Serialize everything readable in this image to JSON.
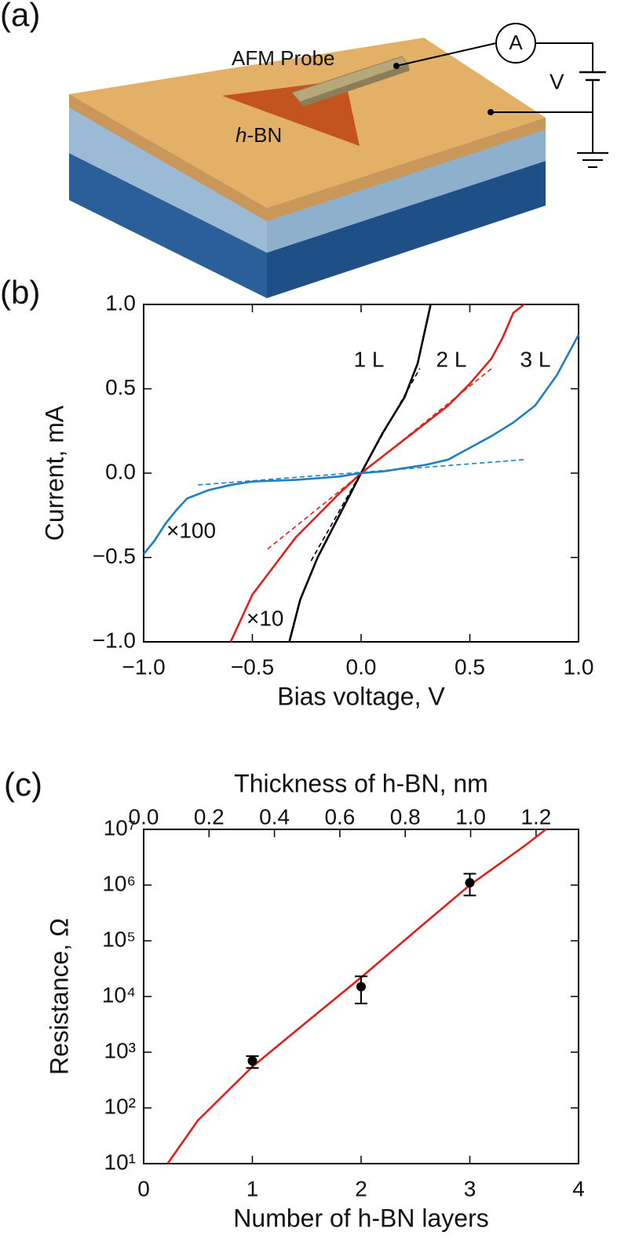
{
  "diagram": {
    "label": "(a)",
    "probe": "AFM Probe",
    "flake": [
      "h",
      "-BN"
    ],
    "voltage": "V",
    "ammeter": "A"
  },
  "chart_data": [
    {
      "type": "line",
      "label": "(b)",
      "xlabel": "Bias voltage, V",
      "ylabel": "Current, mA",
      "xlim": [
        -1,
        1
      ],
      "ylim": [
        -1,
        1
      ],
      "xticks": [
        {
          "value": -1,
          "label": "−1.0"
        },
        {
          "value": -0.5,
          "label": "−0.5"
        },
        {
          "value": 0,
          "label": "0.0"
        },
        0.5,
        {
          "value": 1,
          "label": "1.0"
        }
      ],
      "yticks": [
        {
          "value": -1,
          "label": "−1.0"
        },
        {
          "value": -0.5,
          "label": "−0.5"
        },
        {
          "value": 0,
          "label": "0.0"
        },
        0.5,
        {
          "value": 1,
          "label": "1.0"
        }
      ],
      "series": [
        {
          "color": "#000000",
          "dash": false,
          "x": [
            -0.33,
            -0.28,
            -0.2,
            -0.1,
            0,
            0.1,
            0.2,
            0.26,
            0.32
          ],
          "values": [
            -1,
            -0.75,
            -0.5,
            -0.25,
            0,
            0.24,
            0.45,
            0.65,
            1
          ]
        },
        {
          "color": "#e0201b",
          "dash": false,
          "x": [
            -0.6,
            -0.5,
            -0.4,
            -0.3,
            -0.2,
            -0.1,
            0,
            0.1,
            0.2,
            0.3,
            0.4,
            0.5,
            0.6,
            0.65,
            0.7,
            0.75
          ],
          "values": [
            -1,
            -0.72,
            -0.55,
            -0.38,
            -0.25,
            -0.12,
            0,
            0.1,
            0.2,
            0.3,
            0.4,
            0.53,
            0.68,
            0.8,
            0.95,
            1
          ]
        },
        {
          "color": "#1f7fc0",
          "dash": false,
          "x": [
            -1,
            -0.95,
            -0.9,
            -0.85,
            -0.8,
            -0.7,
            -0.6,
            -0.5,
            -0.3,
            -0.1,
            0,
            0.1,
            0.2,
            0.3,
            0.4,
            0.5,
            0.6,
            0.7,
            0.8,
            0.9,
            1
          ],
          "values": [
            -0.48,
            -0.4,
            -0.3,
            -0.22,
            -0.15,
            -0.1,
            -0.07,
            -0.05,
            -0.04,
            -0.02,
            0,
            0.01,
            0.03,
            0.05,
            0.08,
            0.15,
            0.22,
            0.3,
            0.4,
            0.58,
            0.82
          ]
        },
        {
          "color": "#000000",
          "dash": true,
          "x": [
            -0.23,
            0.27
          ],
          "values": [
            -0.52,
            0.62
          ]
        },
        {
          "color": "#e0201b",
          "dash": true,
          "x": [
            -0.43,
            0.6
          ],
          "values": [
            -0.45,
            0.62
          ]
        },
        {
          "color": "#1f7fc0",
          "dash": true,
          "x": [
            -0.75,
            0.75
          ],
          "values": [
            -0.07,
            0.08
          ]
        }
      ],
      "annotations": [
        {
          "text": "1 L",
          "color": "#000000"
        },
        {
          "text": "2 L",
          "color": "#e0201b"
        },
        {
          "text": "3 L",
          "color": "#1f7fc0"
        },
        {
          "text": "×100",
          "color": "#1f7fc0"
        },
        {
          "text": "×10",
          "color": "#e0201b"
        }
      ]
    },
    {
      "type": "scatter",
      "label": "(c)",
      "xlabel": "Number of h-BN layers",
      "x2label": "Thickness of h-BN, nm",
      "ylabel": "Resistance, Ω",
      "log_y": true,
      "xlim": [
        0,
        4
      ],
      "x2lim": [
        0,
        1.33
      ],
      "ylim": [
        10,
        10000000
      ],
      "xticks": [
        0,
        1,
        2,
        3,
        4
      ],
      "x2ticks": [
        {
          "value": 0,
          "label": "0.0"
        },
        0.2,
        0.4,
        0.6,
        0.8,
        {
          "value": 1,
          "label": "1.0"
        },
        1.2
      ],
      "yticks": [
        {
          "value": 10,
          "label": "10¹"
        },
        {
          "value": 100,
          "label": "10²"
        },
        {
          "value": 1000,
          "label": "10³"
        },
        {
          "value": 10000,
          "label": "10⁴"
        },
        {
          "value": 100000,
          "label": "10⁵"
        },
        {
          "value": 1000000,
          "label": "10⁶"
        },
        {
          "value": 10000000,
          "label": "10⁷"
        }
      ],
      "color": "#000000",
      "x": [
        1,
        2,
        3
      ],
      "values": [
        700,
        15000,
        1100000
      ],
      "ylow": [
        520,
        7500,
        650000
      ],
      "yhigh": [
        850,
        23000,
        1600000
      ],
      "fit": {
        "color": "#e0201b",
        "x": [
          0.22,
          0.5,
          1,
          1.5,
          2,
          2.5,
          3,
          3.5,
          3.7
        ],
        "values": [
          10,
          60,
          550,
          3500,
          22000,
          150000,
          1000000,
          5000000,
          10000000
        ]
      }
    }
  ]
}
